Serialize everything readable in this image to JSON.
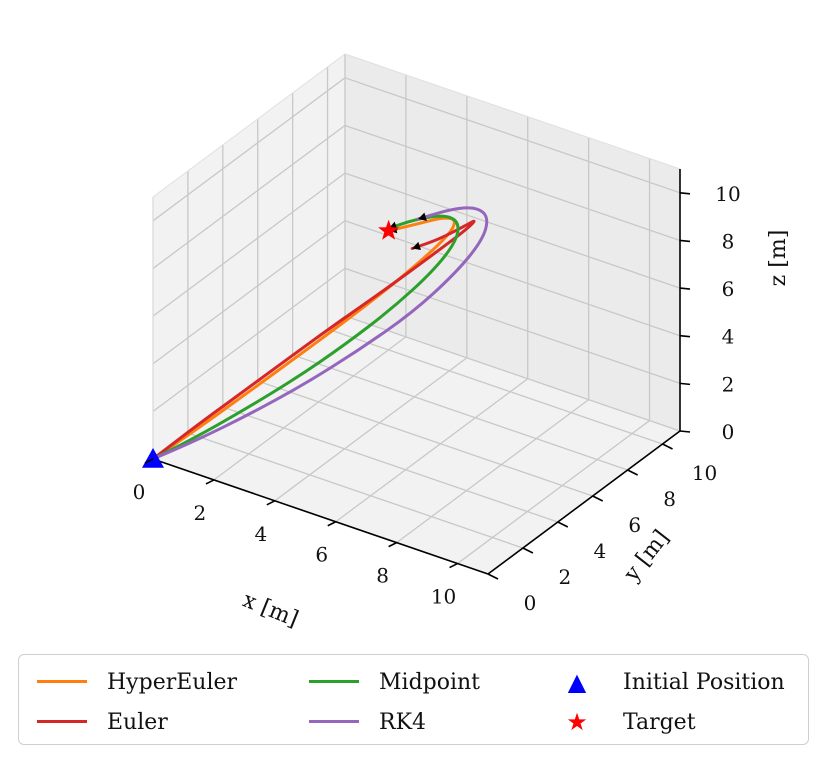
{
  "chart_data": {
    "type": "line",
    "projection": "3d",
    "title": "",
    "xlabel": "x [m]",
    "ylabel": "y [m]",
    "zlabel": "z [m]",
    "xlim": [
      0,
      11
    ],
    "ylim": [
      0,
      11
    ],
    "zlim": [
      0,
      11
    ],
    "xticks": [
      "0",
      "2",
      "4",
      "6",
      "8",
      "10"
    ],
    "yticks": [
      "0",
      "2",
      "4",
      "6",
      "8",
      "10"
    ],
    "zticks": [
      "0",
      "2",
      "4",
      "6",
      "8",
      "10"
    ],
    "grid": true,
    "legend_position": "bottom",
    "series": [
      {
        "name": "HyperEuler",
        "color": "#ff7f0e",
        "x": [
          0,
          1.4,
          3.0,
          4.7,
          6.4,
          8.0,
          9.3,
          10.1,
          10.3,
          9.9,
          9.0,
          8.0
        ],
        "y": [
          0,
          1.4,
          3.0,
          4.7,
          6.4,
          8.0,
          9.3,
          10.1,
          10.3,
          9.9,
          9.0,
          8.0
        ],
        "z": [
          0,
          0.9,
          2.0,
          3.2,
          4.4,
          5.6,
          6.7,
          7.5,
          8.0,
          8.2,
          8.1,
          8.0
        ]
      },
      {
        "name": "Euler",
        "color": "#d62728",
        "x": [
          0,
          1.6,
          3.6,
          5.7,
          7.8,
          9.5,
          10.6,
          11.0,
          10.6,
          9.7,
          8.8
        ],
        "y": [
          0,
          1.6,
          3.6,
          5.7,
          7.8,
          9.5,
          10.6,
          11.0,
          10.6,
          9.7,
          8.8
        ],
        "z": [
          0,
          1.2,
          2.6,
          4.1,
          5.5,
          6.7,
          7.5,
          7.9,
          7.7,
          7.3,
          7.1
        ]
      },
      {
        "name": "Midpoint",
        "color": "#2ca02c",
        "x": [
          0,
          1.4,
          3.0,
          4.8,
          6.5,
          8.1,
          9.5,
          10.3,
          10.4,
          9.9,
          8.9,
          8.0
        ],
        "y": [
          0,
          1.4,
          3.0,
          4.8,
          6.5,
          8.1,
          9.5,
          10.3,
          10.4,
          9.9,
          8.9,
          8.0
        ],
        "z": [
          0,
          0.6,
          1.4,
          2.4,
          3.5,
          4.7,
          6.0,
          7.1,
          7.9,
          8.3,
          8.3,
          8.1
        ]
      },
      {
        "name": "RK4",
        "color": "#9467bd",
        "x": [
          0,
          1.5,
          3.2,
          5.1,
          7.0,
          8.8,
          10.3,
          11.2,
          11.4,
          11.0,
          10.2,
          9.0
        ],
        "y": [
          0,
          1.5,
          3.2,
          5.1,
          7.0,
          8.8,
          10.3,
          11.2,
          11.4,
          11.0,
          10.2,
          9.0
        ],
        "z": [
          0,
          0.5,
          1.2,
          2.1,
          3.2,
          4.4,
          5.8,
          7.0,
          7.9,
          8.4,
          8.5,
          8.3
        ]
      }
    ],
    "points": [
      {
        "name": "Initial Position",
        "marker": "triangle",
        "color": "#0000ff",
        "x": 0,
        "y": 0,
        "z": 0
      },
      {
        "name": "Target",
        "marker": "star",
        "color": "#ff0000",
        "x": 8,
        "y": 8,
        "z": 8
      }
    ]
  }
}
